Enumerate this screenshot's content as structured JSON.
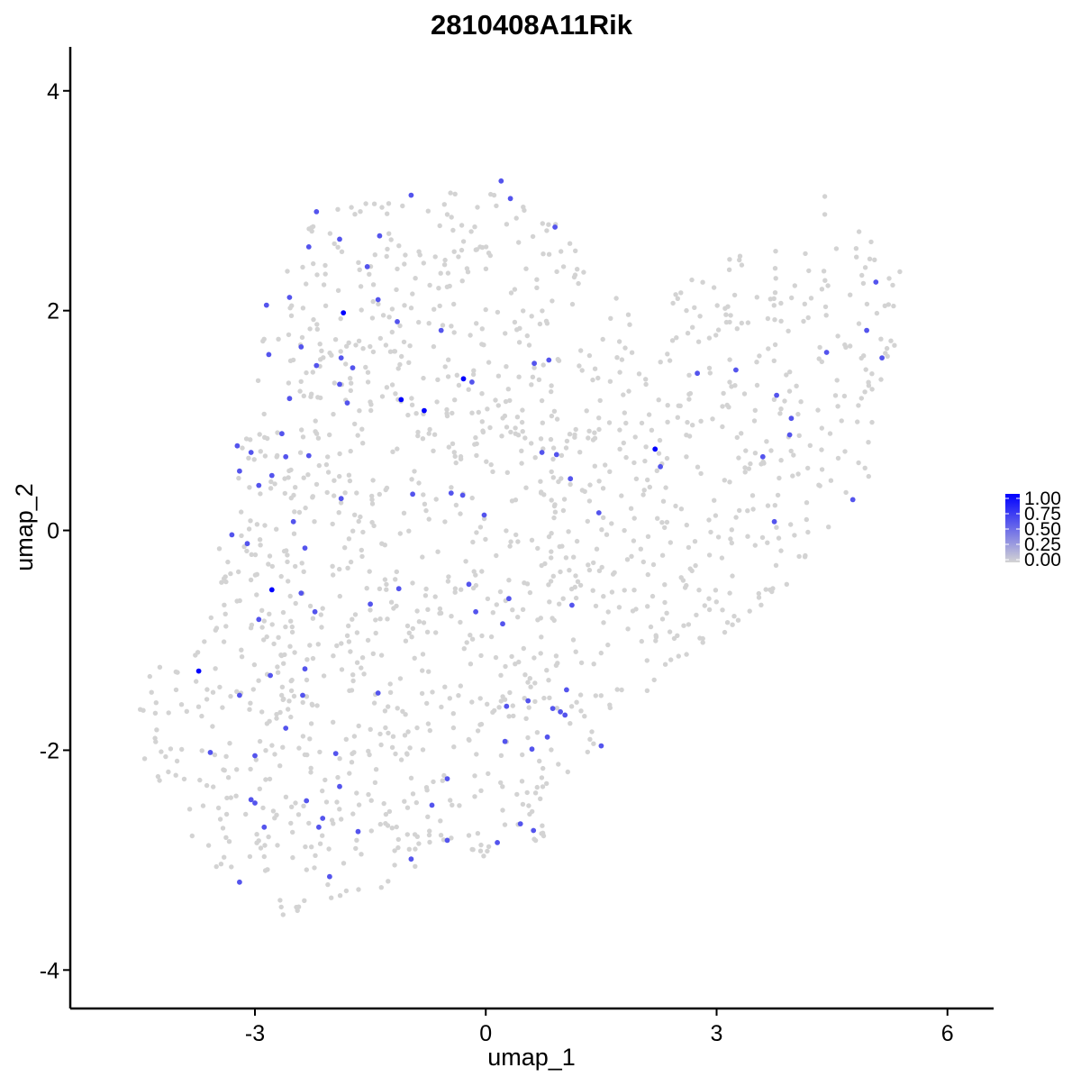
{
  "chart_data": {
    "type": "scatter",
    "title": "2810408A11Rik",
    "xlabel": "umap_1",
    "ylabel": "umap_2",
    "xlim": [
      -5.4,
      6.6
    ],
    "ylim": [
      -4.35,
      4.4
    ],
    "x_ticks": [
      -3,
      0,
      3,
      6
    ],
    "x_tick_labels": [
      "-3",
      "0",
      "3",
      "6"
    ],
    "y_ticks": [
      -4,
      -2,
      0,
      2,
      4
    ],
    "y_tick_labels": [
      "-4",
      "-2",
      "0",
      "2",
      "4"
    ],
    "grid": false,
    "legend": {
      "position": "right",
      "labels": [
        "1.00",
        "0.75",
        "0.50",
        "0.25",
        "0.00"
      ],
      "values": [
        1.0,
        0.75,
        0.5,
        0.25,
        0.0
      ],
      "low_color": "#d3d3d3",
      "high_color": "#0000ff"
    },
    "expressed_points": [
      {
        "x": -1.85,
        "y": 1.98,
        "v": 1.0
      },
      {
        "x": -1.1,
        "y": 1.19,
        "v": 1.0
      },
      {
        "x": -0.8,
        "y": 1.09,
        "v": 1.0
      },
      {
        "x": -0.29,
        "y": 1.38,
        "v": 1.0
      },
      {
        "x": 2.2,
        "y": 0.74,
        "v": 1.0
      },
      {
        "x": -2.78,
        "y": -0.54,
        "v": 1.0
      },
      {
        "x": -3.73,
        "y": -1.28,
        "v": 1.0
      },
      {
        "x": -2.2,
        "y": 2.9,
        "v": 0.6
      },
      {
        "x": -2.3,
        "y": 2.58,
        "v": 0.6
      },
      {
        "x": -1.9,
        "y": 2.65,
        "v": 0.6
      },
      {
        "x": -1.38,
        "y": 2.68,
        "v": 0.6
      },
      {
        "x": -1.54,
        "y": 2.4,
        "v": 0.6
      },
      {
        "x": -0.97,
        "y": 3.05,
        "v": 0.6
      },
      {
        "x": 0.2,
        "y": 3.18,
        "v": 0.6
      },
      {
        "x": 0.32,
        "y": 3.02,
        "v": 0.6
      },
      {
        "x": 0.9,
        "y": 2.76,
        "v": 0.6
      },
      {
        "x": -2.85,
        "y": 2.05,
        "v": 0.6
      },
      {
        "x": -2.55,
        "y": 2.12,
        "v": 0.6
      },
      {
        "x": -1.4,
        "y": 2.1,
        "v": 0.6
      },
      {
        "x": -1.15,
        "y": 1.9,
        "v": 0.6
      },
      {
        "x": -0.58,
        "y": 1.82,
        "v": 0.6
      },
      {
        "x": -2.82,
        "y": 1.6,
        "v": 0.6
      },
      {
        "x": -2.4,
        "y": 1.67,
        "v": 0.6
      },
      {
        "x": -2.2,
        "y": 1.5,
        "v": 0.6
      },
      {
        "x": -1.88,
        "y": 1.57,
        "v": 0.6
      },
      {
        "x": -1.73,
        "y": 1.48,
        "v": 0.6
      },
      {
        "x": -1.9,
        "y": 1.33,
        "v": 0.6
      },
      {
        "x": -1.8,
        "y": 1.16,
        "v": 0.6
      },
      {
        "x": -2.55,
        "y": 1.2,
        "v": 0.6
      },
      {
        "x": -0.18,
        "y": 1.35,
        "v": 0.6
      },
      {
        "x": 0.63,
        "y": 1.52,
        "v": 0.6
      },
      {
        "x": 0.82,
        "y": 1.55,
        "v": 0.6
      },
      {
        "x": 2.27,
        "y": 0.58,
        "v": 0.6
      },
      {
        "x": 2.75,
        "y": 1.43,
        "v": 0.6
      },
      {
        "x": 3.25,
        "y": 1.46,
        "v": 0.6
      },
      {
        "x": 3.78,
        "y": 1.23,
        "v": 0.6
      },
      {
        "x": 3.97,
        "y": 1.02,
        "v": 0.6
      },
      {
        "x": 3.95,
        "y": 0.87,
        "v": 0.6
      },
      {
        "x": 3.6,
        "y": 0.67,
        "v": 0.6
      },
      {
        "x": 4.43,
        "y": 1.62,
        "v": 0.6
      },
      {
        "x": 4.95,
        "y": 1.82,
        "v": 0.6
      },
      {
        "x": 5.07,
        "y": 2.26,
        "v": 0.6
      },
      {
        "x": 5.15,
        "y": 1.57,
        "v": 0.6
      },
      {
        "x": 4.77,
        "y": 0.28,
        "v": 0.6
      },
      {
        "x": 3.75,
        "y": 0.08,
        "v": 0.6
      },
      {
        "x": -3.23,
        "y": 0.77,
        "v": 0.6
      },
      {
        "x": -3.05,
        "y": 0.71,
        "v": 0.6
      },
      {
        "x": -2.65,
        "y": 0.88,
        "v": 0.6
      },
      {
        "x": -3.2,
        "y": 0.54,
        "v": 0.6
      },
      {
        "x": -2.78,
        "y": 0.5,
        "v": 0.6
      },
      {
        "x": -2.6,
        "y": 0.67,
        "v": 0.6
      },
      {
        "x": -2.3,
        "y": 0.68,
        "v": 0.6
      },
      {
        "x": -2.95,
        "y": 0.41,
        "v": 0.6
      },
      {
        "x": -1.88,
        "y": 0.29,
        "v": 0.6
      },
      {
        "x": -0.95,
        "y": 0.33,
        "v": 0.6
      },
      {
        "x": -0.45,
        "y": 0.34,
        "v": 0.6
      },
      {
        "x": -0.3,
        "y": 0.32,
        "v": 0.6
      },
      {
        "x": 0.73,
        "y": 0.71,
        "v": 0.6
      },
      {
        "x": 0.92,
        "y": 0.69,
        "v": 0.6
      },
      {
        "x": 1.1,
        "y": 0.47,
        "v": 0.6
      },
      {
        "x": 1.47,
        "y": 0.16,
        "v": 0.6
      },
      {
        "x": -0.02,
        "y": 0.14,
        "v": 0.6
      },
      {
        "x": -3.3,
        "y": -0.04,
        "v": 0.6
      },
      {
        "x": -3.1,
        "y": -0.12,
        "v": 0.6
      },
      {
        "x": -2.5,
        "y": 0.08,
        "v": 0.6
      },
      {
        "x": -2.35,
        "y": -0.16,
        "v": 0.6
      },
      {
        "x": -2.4,
        "y": -0.57,
        "v": 0.6
      },
      {
        "x": -2.22,
        "y": -0.74,
        "v": 0.6
      },
      {
        "x": -2.95,
        "y": -0.81,
        "v": 0.6
      },
      {
        "x": -1.5,
        "y": -0.67,
        "v": 0.6
      },
      {
        "x": -1.13,
        "y": -0.53,
        "v": 0.6
      },
      {
        "x": -0.22,
        "y": -0.49,
        "v": 0.6
      },
      {
        "x": -0.13,
        "y": -0.74,
        "v": 0.6
      },
      {
        "x": 0.3,
        "y": -0.62,
        "v": 0.6
      },
      {
        "x": 0.22,
        "y": -0.85,
        "v": 0.6
      },
      {
        "x": 1.12,
        "y": -0.68,
        "v": 0.6
      },
      {
        "x": -2.8,
        "y": -1.32,
        "v": 0.6
      },
      {
        "x": -2.35,
        "y": -1.26,
        "v": 0.6
      },
      {
        "x": -3.2,
        "y": -1.5,
        "v": 0.6
      },
      {
        "x": -2.38,
        "y": -1.5,
        "v": 0.6
      },
      {
        "x": -1.4,
        "y": -1.48,
        "v": 0.6
      },
      {
        "x": -2.6,
        "y": -1.8,
        "v": 0.6
      },
      {
        "x": 0.27,
        "y": -1.6,
        "v": 0.6
      },
      {
        "x": 0.55,
        "y": -1.55,
        "v": 0.6
      },
      {
        "x": 0.87,
        "y": -1.62,
        "v": 0.6
      },
      {
        "x": 0.97,
        "y": -1.65,
        "v": 0.6
      },
      {
        "x": 1.03,
        "y": -1.68,
        "v": 0.6
      },
      {
        "x": 1.05,
        "y": -1.45,
        "v": 0.6
      },
      {
        "x": 0.8,
        "y": -1.88,
        "v": 0.6
      },
      {
        "x": 0.25,
        "y": -1.92,
        "v": 0.6
      },
      {
        "x": 0.6,
        "y": -1.99,
        "v": 0.6
      },
      {
        "x": 1.5,
        "y": -1.96,
        "v": 0.6
      },
      {
        "x": -3.58,
        "y": -2.02,
        "v": 0.6
      },
      {
        "x": -3.0,
        "y": -2.05,
        "v": 0.6
      },
      {
        "x": -1.95,
        "y": -2.03,
        "v": 0.6
      },
      {
        "x": -3.05,
        "y": -2.45,
        "v": 0.6
      },
      {
        "x": -3.0,
        "y": -2.48,
        "v": 0.6
      },
      {
        "x": -2.33,
        "y": -2.46,
        "v": 0.6
      },
      {
        "x": -1.9,
        "y": -2.33,
        "v": 0.6
      },
      {
        "x": -0.5,
        "y": -2.26,
        "v": 0.6
      },
      {
        "x": -0.7,
        "y": -2.5,
        "v": 0.6
      },
      {
        "x": -2.88,
        "y": -2.7,
        "v": 0.6
      },
      {
        "x": -2.12,
        "y": -2.62,
        "v": 0.6
      },
      {
        "x": -2.17,
        "y": -2.7,
        "v": 0.6
      },
      {
        "x": -1.66,
        "y": -2.74,
        "v": 0.6
      },
      {
        "x": 0.45,
        "y": -2.67,
        "v": 0.6
      },
      {
        "x": 0.62,
        "y": -2.73,
        "v": 0.6
      },
      {
        "x": -0.5,
        "y": -2.82,
        "v": 0.6
      },
      {
        "x": 0.15,
        "y": -2.84,
        "v": 0.6
      },
      {
        "x": -3.2,
        "y": -3.2,
        "v": 0.6
      },
      {
        "x": -2.03,
        "y": -3.15,
        "v": 0.6
      },
      {
        "x": -0.97,
        "y": -2.99,
        "v": 0.6
      }
    ]
  }
}
